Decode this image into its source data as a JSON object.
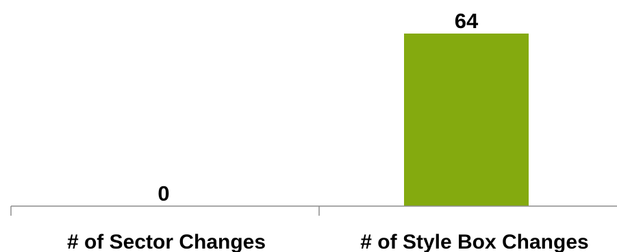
{
  "chart_data": {
    "type": "bar",
    "categories": [
      "# of Sector Changes",
      "# of Style Box Changes"
    ],
    "values": [
      0,
      64
    ],
    "data_labels": [
      "0",
      "64"
    ],
    "bar_color": "#84aa0f",
    "axis_color": "#8c8c8c",
    "ylim": [
      0,
      64
    ],
    "grid": false,
    "legend": "none"
  }
}
